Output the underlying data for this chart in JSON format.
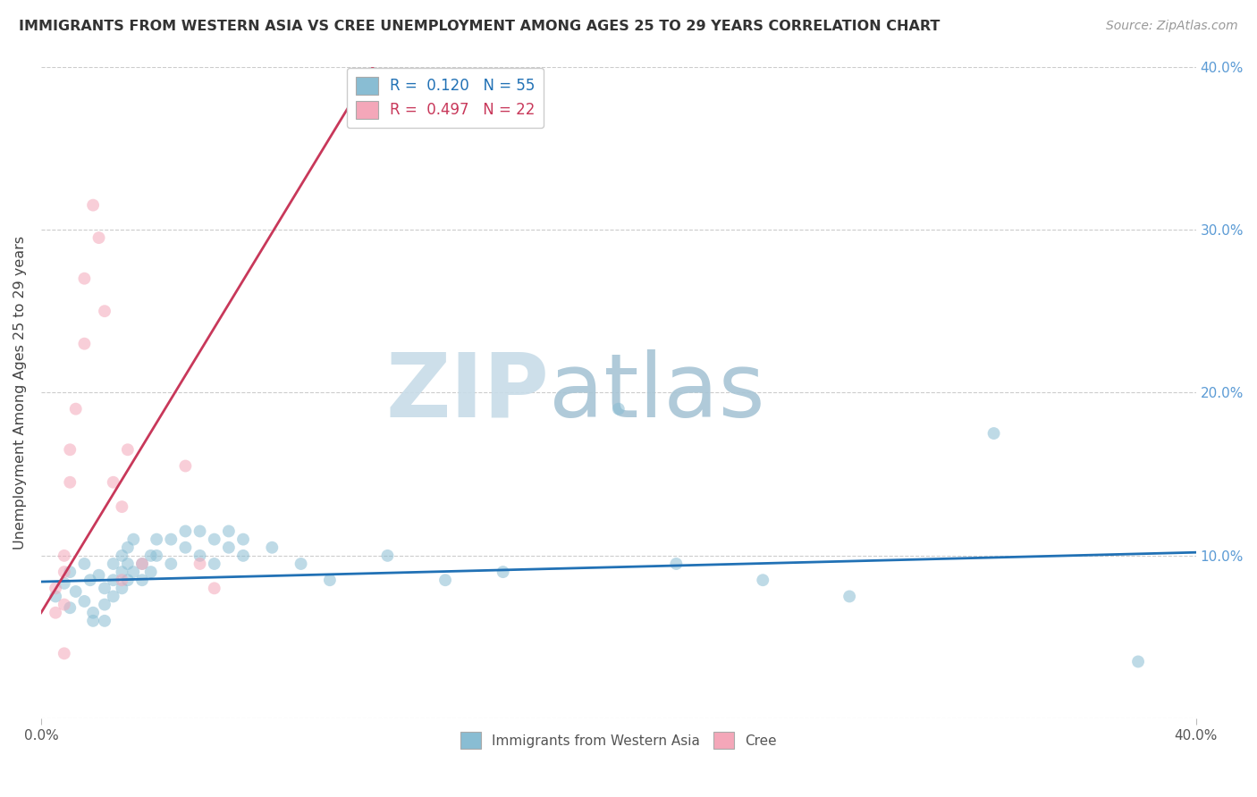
{
  "title": "IMMIGRANTS FROM WESTERN ASIA VS CREE UNEMPLOYMENT AMONG AGES 25 TO 29 YEARS CORRELATION CHART",
  "source": "Source: ZipAtlas.com",
  "ylabel": "Unemployment Among Ages 25 to 29 years",
  "xlim": [
    0.0,
    0.4
  ],
  "ylim": [
    0.0,
    0.4
  ],
  "yticks": [
    0.0,
    0.1,
    0.2,
    0.3,
    0.4
  ],
  "ytick_labels": [
    "",
    "10.0%",
    "20.0%",
    "30.0%",
    "40.0%"
  ],
  "R_blue": 0.12,
  "N_blue": 55,
  "R_pink": 0.497,
  "N_pink": 22,
  "legend_label_blue": "Immigrants from Western Asia",
  "legend_label_pink": "Cree",
  "scatter_blue": [
    [
      0.005,
      0.075
    ],
    [
      0.008,
      0.083
    ],
    [
      0.01,
      0.09
    ],
    [
      0.01,
      0.068
    ],
    [
      0.012,
      0.078
    ],
    [
      0.015,
      0.095
    ],
    [
      0.015,
      0.072
    ],
    [
      0.017,
      0.085
    ],
    [
      0.018,
      0.065
    ],
    [
      0.018,
      0.06
    ],
    [
      0.02,
      0.088
    ],
    [
      0.022,
      0.08
    ],
    [
      0.022,
      0.07
    ],
    [
      0.022,
      0.06
    ],
    [
      0.025,
      0.095
    ],
    [
      0.025,
      0.085
    ],
    [
      0.025,
      0.075
    ],
    [
      0.028,
      0.09
    ],
    [
      0.028,
      0.1
    ],
    [
      0.028,
      0.08
    ],
    [
      0.03,
      0.085
    ],
    [
      0.03,
      0.095
    ],
    [
      0.03,
      0.105
    ],
    [
      0.032,
      0.09
    ],
    [
      0.032,
      0.11
    ],
    [
      0.035,
      0.095
    ],
    [
      0.035,
      0.085
    ],
    [
      0.038,
      0.1
    ],
    [
      0.038,
      0.09
    ],
    [
      0.04,
      0.1
    ],
    [
      0.04,
      0.11
    ],
    [
      0.045,
      0.11
    ],
    [
      0.045,
      0.095
    ],
    [
      0.05,
      0.105
    ],
    [
      0.05,
      0.115
    ],
    [
      0.055,
      0.1
    ],
    [
      0.055,
      0.115
    ],
    [
      0.06,
      0.11
    ],
    [
      0.06,
      0.095
    ],
    [
      0.065,
      0.105
    ],
    [
      0.065,
      0.115
    ],
    [
      0.07,
      0.1
    ],
    [
      0.07,
      0.11
    ],
    [
      0.08,
      0.105
    ],
    [
      0.09,
      0.095
    ],
    [
      0.1,
      0.085
    ],
    [
      0.12,
      0.1
    ],
    [
      0.14,
      0.085
    ],
    [
      0.16,
      0.09
    ],
    [
      0.2,
      0.19
    ],
    [
      0.22,
      0.095
    ],
    [
      0.25,
      0.085
    ],
    [
      0.28,
      0.075
    ],
    [
      0.33,
      0.175
    ],
    [
      0.38,
      0.035
    ]
  ],
  "scatter_pink": [
    [
      0.005,
      0.08
    ],
    [
      0.005,
      0.065
    ],
    [
      0.008,
      0.07
    ],
    [
      0.008,
      0.09
    ],
    [
      0.008,
      0.1
    ],
    [
      0.01,
      0.145
    ],
    [
      0.01,
      0.165
    ],
    [
      0.012,
      0.19
    ],
    [
      0.015,
      0.23
    ],
    [
      0.015,
      0.27
    ],
    [
      0.018,
      0.315
    ],
    [
      0.02,
      0.295
    ],
    [
      0.022,
      0.25
    ],
    [
      0.025,
      0.145
    ],
    [
      0.028,
      0.13
    ],
    [
      0.028,
      0.085
    ],
    [
      0.03,
      0.165
    ],
    [
      0.035,
      0.095
    ],
    [
      0.05,
      0.155
    ],
    [
      0.055,
      0.095
    ],
    [
      0.06,
      0.08
    ],
    [
      0.008,
      0.04
    ]
  ],
  "dot_size": 100,
  "alpha": 0.55,
  "color_blue": "#89bdd3",
  "color_pink": "#f4a7b9",
  "line_color_blue": "#2171b5",
  "line_color_pink": "#c8385a",
  "background_color": "#ffffff",
  "watermark_zip": "ZIP",
  "watermark_atlas": "atlas",
  "watermark_color_zip": "#c8dce8",
  "watermark_color_atlas": "#a8c5d5"
}
